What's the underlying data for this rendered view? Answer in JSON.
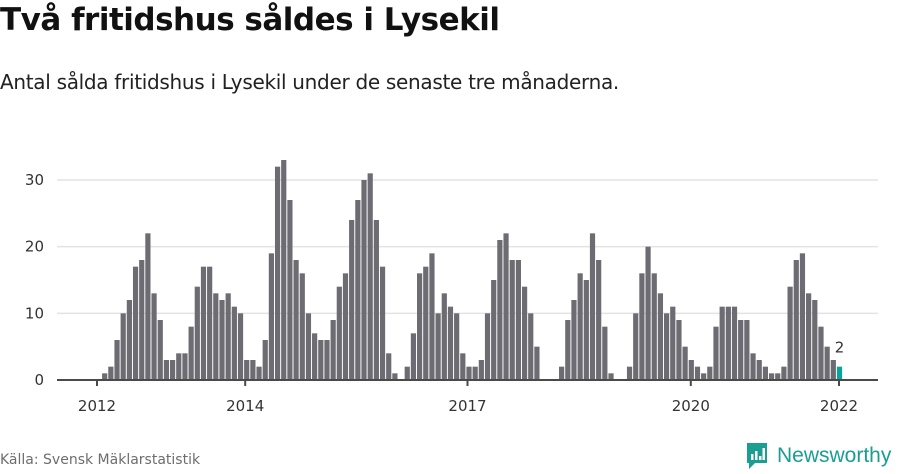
{
  "header": {
    "title": "Två fritidshus såldes i Lysekil",
    "subtitle": "Antal sålda fritidshus i Lysekil under de senaste tre månaderna."
  },
  "footer": {
    "source": "Källa: Svensk Mäklarstatistik",
    "brand": "Newsworthy"
  },
  "colors": {
    "bar": "#6d6c72",
    "highlight": "#0aa59a",
    "grid": "#e3e3e3",
    "axis": "#4a4a4a",
    "brand": "#1a9e92"
  },
  "chart_data": {
    "type": "bar",
    "title": "Två fritidshus såldes i Lysekil",
    "subtitle": "Antal sålda fritidshus i Lysekil under de senaste tre månaderna.",
    "xlabel": "",
    "ylabel": "",
    "ylim": [
      0,
      33
    ],
    "yticks": [
      0,
      10,
      20,
      30
    ],
    "xticks": [
      "2012",
      "2014",
      "2017",
      "2020",
      "2022"
    ],
    "grid": true,
    "legend": null,
    "start_month": "2012-02",
    "end_month": "2022-01",
    "annotation": {
      "label": "2",
      "month_index": 119
    },
    "values": [
      1,
      2,
      6,
      10,
      12,
      17,
      18,
      22,
      13,
      9,
      3,
      3,
      4,
      4,
      8,
      14,
      17,
      17,
      13,
      12,
      13,
      11,
      10,
      3,
      3,
      2,
      6,
      19,
      32,
      33,
      27,
      18,
      16,
      10,
      7,
      6,
      6,
      9,
      14,
      16,
      24,
      27,
      30,
      31,
      24,
      17,
      4,
      1,
      0,
      2,
      7,
      16,
      17,
      19,
      10,
      13,
      11,
      10,
      4,
      2,
      2,
      3,
      10,
      15,
      21,
      22,
      18,
      18,
      14,
      10,
      5,
      0,
      0,
      0,
      2,
      9,
      12,
      16,
      15,
      22,
      18,
      8,
      1,
      0,
      0,
      2,
      10,
      16,
      20,
      16,
      13,
      10,
      11,
      9,
      5,
      3,
      2,
      1,
      2,
      8,
      11,
      11,
      11,
      9,
      9,
      4,
      3,
      2,
      1,
      1,
      2,
      14,
      18,
      19,
      13,
      12,
      8,
      5,
      3,
      2
    ]
  }
}
